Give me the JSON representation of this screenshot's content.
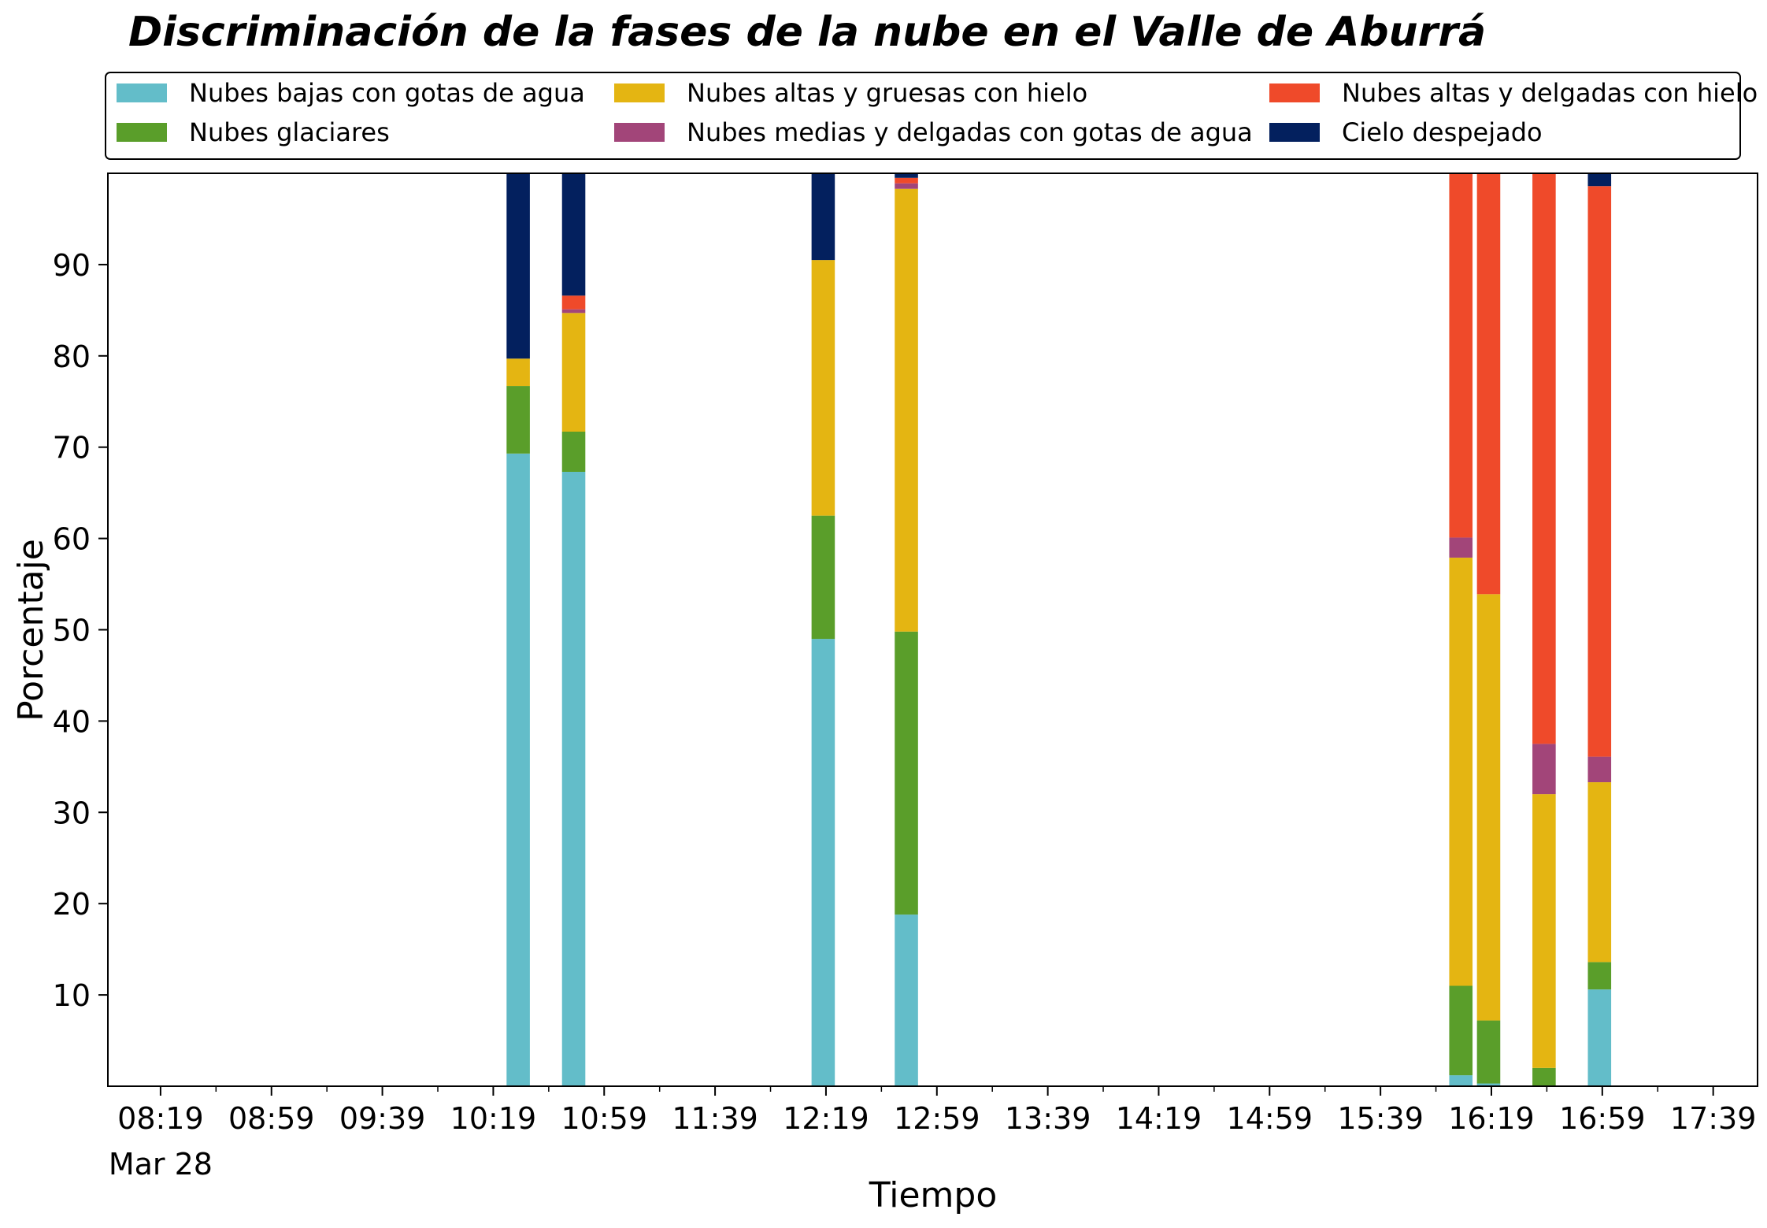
{
  "chart_data": {
    "type": "bar",
    "stacked": true,
    "title": "Discriminación de la fases de la nube en el Valle de Aburrá",
    "xlabel": "Tiempo",
    "ylabel": "Porcentaje",
    "ylim": [
      0,
      100
    ],
    "yticks": [
      10,
      20,
      30,
      40,
      50,
      60,
      70,
      80,
      90
    ],
    "xlim_minutes": [
      480,
      1075
    ],
    "xtick_minutes": [
      499,
      539,
      579,
      619,
      659,
      699,
      739,
      779,
      819,
      859,
      899,
      939,
      979,
      1019,
      1059
    ],
    "xtick_labels": [
      "08:19",
      "08:59",
      "09:39",
      "10:19",
      "10:59",
      "11:39",
      "12:19",
      "12:59",
      "13:39",
      "14:19",
      "14:59",
      "15:39",
      "16:19",
      "16:59",
      "17:39"
    ],
    "xtick_sublabel": "Mar 28",
    "grid": false,
    "legend_position": "top",
    "series": [
      {
        "name": "Nubes bajas con gotas de agua",
        "color": "#63bdc9",
        "values": [
          69.3,
          67.3,
          49.0,
          18.8,
          1.2,
          0.3,
          0.0,
          10.6
        ]
      },
      {
        "name": "Nubes glaciares",
        "color": "#5a9e2a",
        "values": [
          7.4,
          4.4,
          13.5,
          31.0,
          9.8,
          6.9,
          2.0,
          3.0
        ]
      },
      {
        "name": "Nubes altas y gruesas con hielo",
        "color": "#e4b512",
        "values": [
          3.0,
          13.0,
          28.0,
          48.5,
          46.9,
          46.7,
          30.0,
          19.7
        ]
      },
      {
        "name": "Nubes medias y delgadas con gotas de agua",
        "color": "#a24579",
        "values": [
          0.0,
          0.4,
          0.0,
          0.6,
          2.2,
          0.0,
          5.5,
          2.8
        ]
      },
      {
        "name": "Nubes altas y delgadas con hielo",
        "color": "#ef4a2a",
        "values": [
          0.0,
          1.5,
          0.0,
          0.6,
          39.9,
          46.1,
          62.5,
          62.5
        ]
      },
      {
        "name": "Cielo despejado",
        "color": "#03205e",
        "values": [
          20.3,
          13.4,
          9.5,
          0.5,
          0.0,
          0.0,
          0.0,
          1.4
        ]
      }
    ],
    "bar_time_minutes": [
      628,
      648,
      738,
      768,
      968,
      978,
      998,
      1018
    ],
    "bar_width_minutes": 8.4
  }
}
